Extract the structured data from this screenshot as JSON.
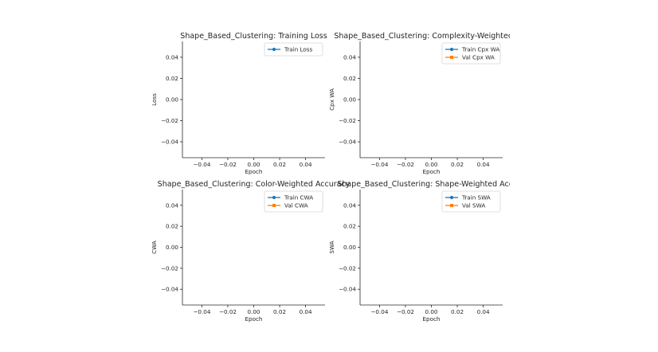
{
  "chart_data": [
    {
      "type": "line",
      "title": "Shape_Based_Clustering: Training Loss",
      "xlabel": "Epoch",
      "ylabel": "Loss",
      "xlim": [
        -0.055,
        0.055
      ],
      "ylim": [
        -0.055,
        0.055
      ],
      "xticks": [
        -0.04,
        -0.02,
        0.0,
        0.02,
        0.04
      ],
      "yticks": [
        -0.04,
        -0.02,
        0.0,
        0.02,
        0.04
      ],
      "xtick_labels": [
        "−0.04",
        "−0.02",
        "0.00",
        "0.02",
        "0.04"
      ],
      "ytick_labels": [
        "−0.04",
        "−0.02",
        "0.00",
        "0.02",
        "0.04"
      ],
      "grid": false,
      "legend_position": "top-right",
      "series": [
        {
          "name": "Train Loss",
          "color": "#1f77b4",
          "marker": "circle",
          "x": [],
          "y": []
        }
      ]
    },
    {
      "type": "line",
      "title": "Shape_Based_Clustering: Complexity-Weighted Acc",
      "xlabel": "Epoch",
      "ylabel": "Cpx WA",
      "xlim": [
        -0.055,
        0.055
      ],
      "ylim": [
        -0.055,
        0.055
      ],
      "xticks": [
        -0.04,
        -0.02,
        0.0,
        0.02,
        0.04
      ],
      "yticks": [
        -0.04,
        -0.02,
        0.0,
        0.02,
        0.04
      ],
      "xtick_labels": [
        "−0.04",
        "−0.02",
        "0.00",
        "0.02",
        "0.04"
      ],
      "ytick_labels": [
        "−0.04",
        "−0.02",
        "0.00",
        "0.02",
        "0.04"
      ],
      "grid": false,
      "legend_position": "top-right",
      "series": [
        {
          "name": "Train Cpx WA",
          "color": "#1f77b4",
          "marker": "circle",
          "x": [],
          "y": []
        },
        {
          "name": "Val Cpx WA",
          "color": "#ff7f0e",
          "marker": "square",
          "x": [],
          "y": []
        }
      ]
    },
    {
      "type": "line",
      "title": "Shape_Based_Clustering: Color-Weighted Accuracy",
      "xlabel": "Epoch",
      "ylabel": "CWA",
      "xlim": [
        -0.055,
        0.055
      ],
      "ylim": [
        -0.055,
        0.055
      ],
      "xticks": [
        -0.04,
        -0.02,
        0.0,
        0.02,
        0.04
      ],
      "yticks": [
        -0.04,
        -0.02,
        0.0,
        0.02,
        0.04
      ],
      "xtick_labels": [
        "−0.04",
        "−0.02",
        "0.00",
        "0.02",
        "0.04"
      ],
      "ytick_labels": [
        "−0.04",
        "−0.02",
        "0.00",
        "0.02",
        "0.04"
      ],
      "grid": false,
      "legend_position": "top-right",
      "series": [
        {
          "name": "Train CWA",
          "color": "#1f77b4",
          "marker": "circle",
          "x": [],
          "y": []
        },
        {
          "name": "Val CWA",
          "color": "#ff7f0e",
          "marker": "square",
          "x": [],
          "y": []
        }
      ]
    },
    {
      "type": "line",
      "title": "Shape_Based_Clustering: Shape-Weighted Accura",
      "xlabel": "Epoch",
      "ylabel": "SWA",
      "xlim": [
        -0.055,
        0.055
      ],
      "ylim": [
        -0.055,
        0.055
      ],
      "xticks": [
        -0.04,
        -0.02,
        0.0,
        0.02,
        0.04
      ],
      "yticks": [
        -0.04,
        -0.02,
        0.0,
        0.02,
        0.04
      ],
      "xtick_labels": [
        "−0.04",
        "−0.02",
        "0.00",
        "0.02",
        "0.04"
      ],
      "ytick_labels": [
        "−0.04",
        "−0.02",
        "0.00",
        "0.02",
        "0.04"
      ],
      "grid": false,
      "legend_position": "top-right",
      "series": [
        {
          "name": "Train SWA",
          "color": "#1f77b4",
          "marker": "circle",
          "x": [],
          "y": []
        },
        {
          "name": "Val SWA",
          "color": "#ff7f0e",
          "marker": "square",
          "x": [],
          "y": []
        }
      ]
    }
  ]
}
